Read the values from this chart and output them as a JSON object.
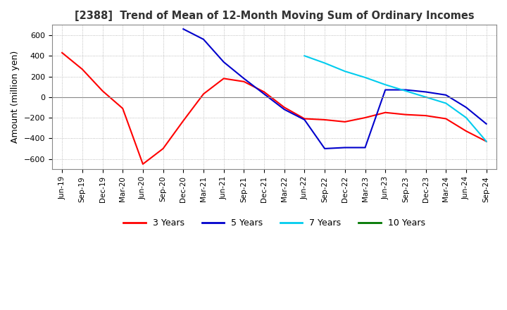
{
  "title": "[2388]  Trend of Mean of 12-Month Moving Sum of Ordinary Incomes",
  "ylabel": "Amount (million yen)",
  "ylim": [
    -700,
    700
  ],
  "yticks": [
    -600,
    -400,
    -200,
    0,
    200,
    400,
    600
  ],
  "background_color": "#ffffff",
  "grid_color": "#aaaaaa",
  "line_colors": {
    "3y": "#ff0000",
    "5y": "#0000cc",
    "7y": "#00ccee",
    "10y": "#007700"
  },
  "legend_labels": [
    "3 Years",
    "5 Years",
    "7 Years",
    "10 Years"
  ],
  "x_labels": [
    "Jun-19",
    "Sep-19",
    "Dec-19",
    "Mar-20",
    "Jun-20",
    "Sep-20",
    "Dec-20",
    "Mar-21",
    "Jun-21",
    "Sep-21",
    "Dec-21",
    "Mar-22",
    "Jun-22",
    "Sep-22",
    "Dec-22",
    "Mar-23",
    "Jun-23",
    "Sep-23",
    "Dec-23",
    "Mar-24",
    "Jun-24",
    "Sep-24"
  ],
  "series_3y": [
    430,
    270,
    60,
    -110,
    -650,
    -500,
    -230,
    30,
    180,
    150,
    50,
    -100,
    -210,
    -220,
    -240,
    -200,
    -150,
    -170,
    -180,
    -210,
    -330,
    -430
  ],
  "series_5y": [
    null,
    null,
    null,
    null,
    null,
    null,
    660,
    560,
    340,
    180,
    30,
    -120,
    -220,
    -500,
    -490,
    -490,
    70,
    70,
    50,
    20,
    -100,
    -260
  ],
  "series_7y": [
    null,
    null,
    null,
    null,
    null,
    null,
    null,
    null,
    null,
    null,
    null,
    null,
    400,
    330,
    250,
    190,
    120,
    60,
    0,
    -60,
    -200,
    -430
  ],
  "series_10y": []
}
